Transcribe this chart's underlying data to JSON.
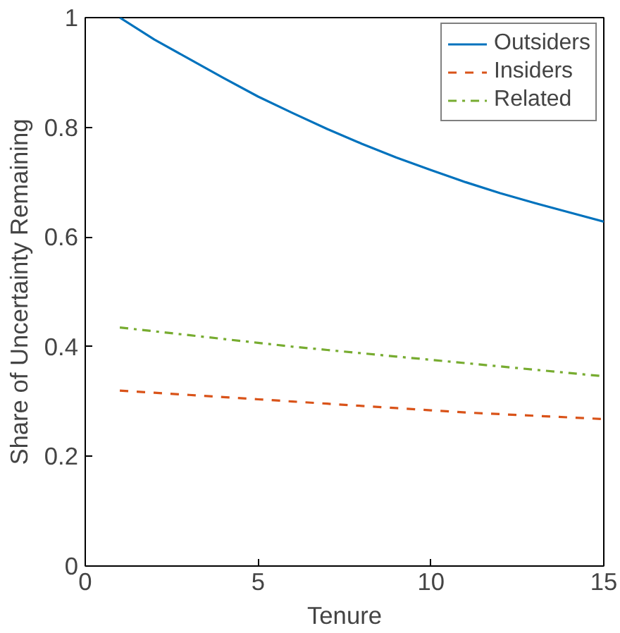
{
  "chart_data": {
    "type": "line",
    "xlabel": "Tenure",
    "ylabel": "Share of Uncertainty Remaining",
    "x": [
      1,
      2,
      3,
      4,
      5,
      6,
      7,
      8,
      9,
      10,
      11,
      12,
      13,
      14,
      15
    ],
    "series": [
      {
        "name": "Outsiders",
        "color": "#0072bd",
        "line_style": "solid",
        "values": [
          1.0,
          0.96,
          0.925,
          0.89,
          0.856,
          0.826,
          0.797,
          0.77,
          0.745,
          0.722,
          0.7,
          0.68,
          0.662,
          0.645,
          0.628
        ]
      },
      {
        "name": "Insiders",
        "color": "#d95319",
        "line_style": "dashed",
        "values": [
          0.32,
          0.316,
          0.312,
          0.308,
          0.304,
          0.3,
          0.296,
          0.292,
          0.288,
          0.284,
          0.28,
          0.277,
          0.274,
          0.271,
          0.268
        ]
      },
      {
        "name": "Related",
        "color": "#77ac30",
        "line_style": "dashdot",
        "values": [
          0.435,
          0.428,
          0.421,
          0.414,
          0.407,
          0.4,
          0.394,
          0.388,
          0.382,
          0.376,
          0.37,
          0.364,
          0.358,
          0.352,
          0.346
        ]
      }
    ],
    "xlim": [
      0,
      15
    ],
    "ylim": [
      0,
      1
    ],
    "xticks": [
      0,
      5,
      10,
      15
    ],
    "yticks": [
      0,
      0.2,
      0.4,
      0.6,
      0.8,
      1
    ],
    "grid": false,
    "legend": "top right",
    "marker": "none"
  }
}
